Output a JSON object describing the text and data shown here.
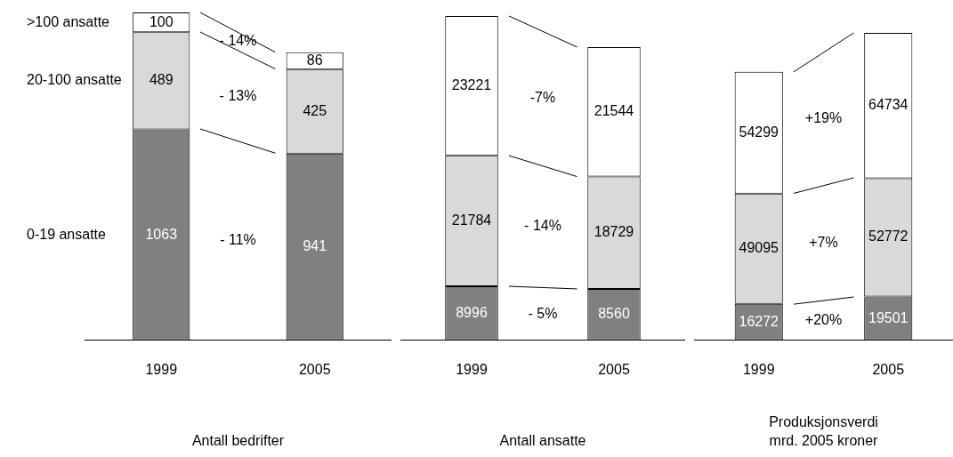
{
  "chart_data": [
    {
      "type": "bar",
      "stacked": true,
      "categories": [
        "1999",
        "2005"
      ],
      "xlabel": "Antall bedrifter",
      "data_labels": true,
      "tick_labels": "x",
      "grid": false,
      "legend": false,
      "series": [
        {
          "name": "0-19 ansatte",
          "color": "#808080",
          "values": [
            1063,
            941
          ]
        },
        {
          "name": "20-100 ansatte",
          "color": "#d9d9d9",
          "values": [
            489,
            425
          ]
        },
        {
          "name": ">100 ansatte",
          "color": "#ffffff",
          "values": [
            100,
            86
          ]
        }
      ],
      "annotations": [
        "- 11%",
        "- 13%",
        "- 14%"
      ]
    },
    {
      "type": "bar",
      "stacked": true,
      "categories": [
        "1999",
        "2005"
      ],
      "xlabel": "Antall ansatte",
      "data_labels": true,
      "tick_labels": "x",
      "grid": false,
      "legend": false,
      "series": [
        {
          "color": "#808080",
          "values": [
            8996,
            8560
          ]
        },
        {
          "color": "#d9d9d9",
          "values": [
            21784,
            18729
          ]
        },
        {
          "color": "#ffffff",
          "values": [
            23221,
            21544
          ]
        }
      ],
      "annotations": [
        "- 5%",
        "- 14%",
        "-7%"
      ]
    },
    {
      "type": "bar",
      "stacked": true,
      "categories": [
        "1999",
        "2005"
      ],
      "xlabel": "Produksjonsverdi\nmrd. 2005 kroner",
      "data_labels": true,
      "tick_labels": "x",
      "grid": false,
      "legend": false,
      "series": [
        {
          "color": "#808080",
          "values": [
            16272,
            19501
          ]
        },
        {
          "color": "#d9d9d9",
          "values": [
            49095,
            52772
          ]
        },
        {
          "color": "#ffffff",
          "values": [
            54299,
            64734
          ]
        }
      ],
      "annotations": [
        "+20%",
        "+7%",
        "+19%"
      ]
    }
  ]
}
